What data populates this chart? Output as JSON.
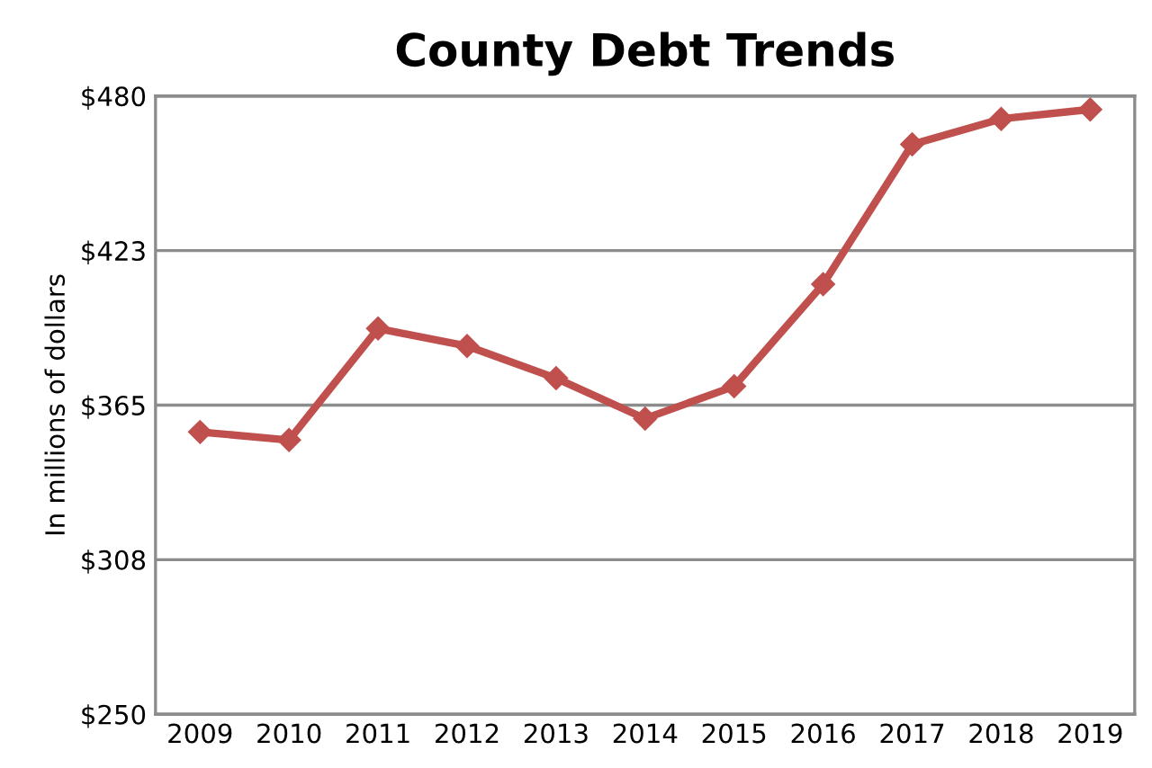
{
  "chart_data": {
    "type": "line",
    "title": "County Debt Trends",
    "ylabel": "In millions of dollars",
    "categories": [
      "2009",
      "2010",
      "2011",
      "2012",
      "2013",
      "2014",
      "2015",
      "2016",
      "2017",
      "2018",
      "2019"
    ],
    "series": [
      {
        "color": "#c0504d",
        "values": [
          355,
          352,
          393.5,
          387,
          375,
          360,
          372,
          410,
          462,
          471.5,
          475
        ]
      }
    ],
    "ylim": [
      250,
      480
    ],
    "yticks": [
      {
        "value": 250,
        "label": "$250"
      },
      {
        "value": 307.5,
        "label": "$308"
      },
      {
        "value": 365,
        "label": "$365"
      },
      {
        "value": 422.5,
        "label": "$423"
      },
      {
        "value": 480,
        "label": "$480"
      }
    ],
    "grid": "y",
    "marker": "diamond",
    "line_style": "solid",
    "legend": false
  }
}
